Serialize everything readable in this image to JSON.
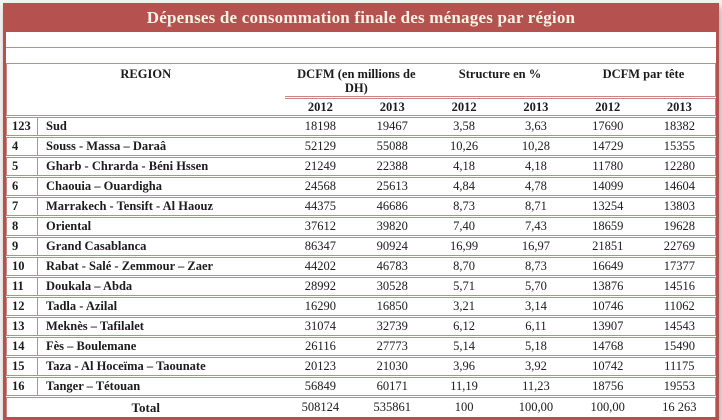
{
  "title": "Dépenses de consommation finale des ménages par région",
  "colors": {
    "banner_background": "#b5514e",
    "banner_text": "#f8f3e6",
    "outer_border": "#b5514e",
    "inner_border": "#cb8683",
    "body_text": "#1b1b1b"
  },
  "table": {
    "region_header": "REGION",
    "group_headers": [
      "DCFM (en millions de DH)",
      "Structure en %",
      "DCFM par tête"
    ],
    "year_headers": [
      "2012",
      "2013",
      "2012",
      "2013",
      "2012",
      "2013"
    ],
    "rows": [
      {
        "num": "123",
        "region": "Sud",
        "values": [
          "18198",
          "19467",
          "3,58",
          "3,63",
          "17690",
          "18382"
        ]
      },
      {
        "num": "4",
        "region": "Souss - Massa – Daraâ",
        "values": [
          "52129",
          "55088",
          "10,26",
          "10,28",
          "14729",
          "15355"
        ]
      },
      {
        "num": "5",
        "region": "Gharb - Chrarda - Béni Hssen",
        "values": [
          "21249",
          "22388",
          "4,18",
          "4,18",
          "11780",
          "12280"
        ]
      },
      {
        "num": "6",
        "region": "Chaouia – Ouardigha",
        "values": [
          "24568",
          "25613",
          "4,84",
          "4,78",
          "14099",
          "14604"
        ]
      },
      {
        "num": "7",
        "region": "Marrakech - Tensift - Al Haouz",
        "values": [
          "44375",
          "46686",
          "8,73",
          "8,71",
          "13254",
          "13803"
        ]
      },
      {
        "num": "8",
        "region": "Oriental",
        "values": [
          "37612",
          "39820",
          "7,40",
          "7,43",
          "18659",
          "19628"
        ]
      },
      {
        "num": "9",
        "region": "Grand Casablanca",
        "values": [
          "86347",
          "90924",
          "16,99",
          "16,97",
          "21851",
          "22769"
        ]
      },
      {
        "num": "10",
        "region": "Rabat - Salé - Zemmour – Zaer",
        "values": [
          "44202",
          "46783",
          "8,70",
          "8,73",
          "16649",
          "17377"
        ]
      },
      {
        "num": "11",
        "region": "Doukala – Abda",
        "values": [
          "28992",
          "30528",
          "5,71",
          "5,70",
          "13876",
          "14516"
        ]
      },
      {
        "num": "12",
        "region": "Tadla -  Azilal",
        "values": [
          "16290",
          "16850",
          "3,21",
          "3,14",
          "10746",
          "11062"
        ]
      },
      {
        "num": "13",
        "region": "Meknès – Tafilalet",
        "values": [
          "31074",
          "32739",
          "6,12",
          "6,11",
          "13907",
          "14543"
        ]
      },
      {
        "num": "14",
        "region": "Fès – Boulemane",
        "values": [
          "26116",
          "27773",
          "5,14",
          "5,18",
          "14768",
          "15490"
        ]
      },
      {
        "num": "15",
        "region": "Taza - Al Hoceïma – Taounate",
        "values": [
          "20123",
          "21030",
          "3,96",
          "3,92",
          "10742",
          "11175"
        ]
      },
      {
        "num": "16",
        "region": "Tanger – Tétouan",
        "values": [
          "56849",
          "60171",
          "11,19",
          "11,23",
          "18756",
          "19553"
        ]
      }
    ],
    "total": {
      "label": "Total",
      "values": [
        "508124",
        "535861",
        "100",
        "100,00",
        "100,00",
        "16 263"
      ]
    }
  }
}
